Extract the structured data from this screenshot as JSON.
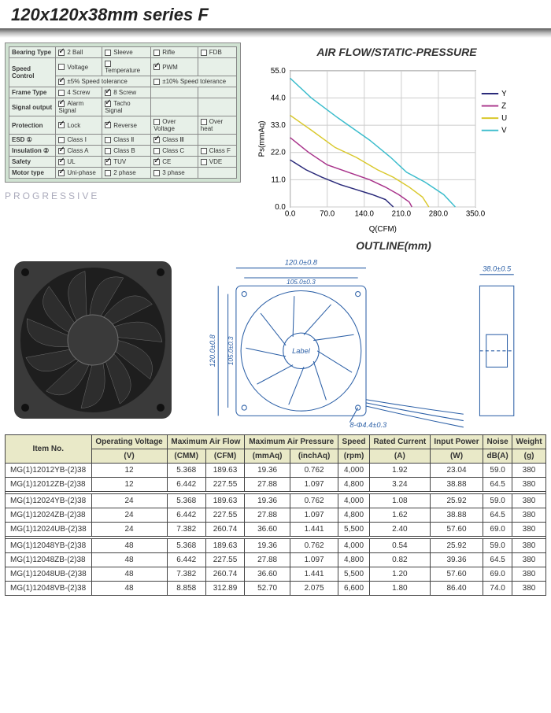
{
  "page": {
    "title": "120x120x38mm series F"
  },
  "spec_table": {
    "rows": [
      {
        "label": "Bearing Type",
        "cells": [
          {
            "text": "2 Ball",
            "checked": true
          },
          {
            "text": "Sleeve",
            "checked": false
          },
          {
            "text": "Rifle",
            "checked": false
          },
          {
            "text": "FDB",
            "checked": false
          }
        ]
      },
      {
        "label": "Speed Control",
        "subrows": [
          [
            {
              "text": "Voltage",
              "checked": false
            },
            {
              "text": "Temperature",
              "checked": false
            },
            {
              "text": "PWM",
              "checked": true
            },
            {
              "text": "",
              "checked": null
            }
          ],
          [
            {
              "text": "±5% Speed tolerance",
              "checked": true,
              "span": 2
            },
            {
              "text": "±10% Speed tolerance",
              "checked": false,
              "span": 2
            }
          ]
        ]
      },
      {
        "label": "Frame Type",
        "cells": [
          {
            "text": "4 Screw",
            "checked": false
          },
          {
            "text": "8 Screw",
            "checked": true
          },
          {
            "text": "",
            "checked": null
          },
          {
            "text": "",
            "checked": null
          }
        ]
      },
      {
        "label": "Signal output",
        "cells": [
          {
            "text": "Alarm Signal",
            "checked": true
          },
          {
            "text": "Tacho Signal",
            "checked": true
          },
          {
            "text": "",
            "checked": null
          },
          {
            "text": "",
            "checked": null
          }
        ]
      },
      {
        "label": "Protection",
        "cells": [
          {
            "text": "Lock",
            "checked": true
          },
          {
            "text": "Reverse",
            "checked": true
          },
          {
            "text": "Over Voltage",
            "checked": false
          },
          {
            "text": "Over heat",
            "checked": false
          }
        ]
      },
      {
        "label": "ESD ①",
        "cells": [
          {
            "text": "Class Ⅰ",
            "checked": false
          },
          {
            "text": "Class Ⅱ",
            "checked": false
          },
          {
            "text": "Class Ⅲ",
            "checked": true
          },
          {
            "text": "",
            "checked": null
          }
        ]
      },
      {
        "label": "Insulation ②",
        "cells": [
          {
            "text": "Class A",
            "checked": true
          },
          {
            "text": "Class B",
            "checked": false
          },
          {
            "text": "Class C",
            "checked": false
          },
          {
            "text": "Class F",
            "checked": false
          }
        ]
      },
      {
        "label": "Safety",
        "cells": [
          {
            "text": "UL",
            "checked": true
          },
          {
            "text": "TUV",
            "checked": true
          },
          {
            "text": "CE",
            "checked": true
          },
          {
            "text": "VDE",
            "checked": false
          }
        ]
      },
      {
        "label": "Motor type",
        "cells": [
          {
            "text": "Uni-phase",
            "checked": true
          },
          {
            "text": "2 phase",
            "checked": false
          },
          {
            "text": "3 phase",
            "checked": false
          },
          {
            "text": "",
            "checked": null
          }
        ]
      }
    ],
    "bg_color": "#d0e2d2",
    "cell_bg": "#e7f0e8",
    "watermark": "PROGRESSIVE"
  },
  "chart": {
    "title": "AIR FLOW/STATIC-PRESSURE",
    "type": "line",
    "xlabel": "Q(CFM)",
    "ylabel": "Ps(mmAq)",
    "xlim": [
      0,
      350
    ],
    "ylim": [
      0,
      55
    ],
    "xticks": [
      0.0,
      70.0,
      140.0,
      210.0,
      280.0,
      350.0
    ],
    "yticks": [
      0.0,
      11.0,
      22.0,
      33.0,
      44.0,
      55.0
    ],
    "grid_color": "#cccccc",
    "axis_color": "#000000",
    "bg_color": "#ffffff",
    "legend": [
      {
        "name": "Y",
        "color": "#2a2a7a"
      },
      {
        "name": "Z",
        "color": "#a8328a"
      },
      {
        "name": "U",
        "color": "#d9c82b"
      },
      {
        "name": "V",
        "color": "#3abccc"
      }
    ],
    "series": {
      "V": [
        [
          0,
          52
        ],
        [
          40,
          44
        ],
        [
          90,
          36
        ],
        [
          150,
          27
        ],
        [
          190,
          20
        ],
        [
          220,
          14
        ],
        [
          255,
          10
        ],
        [
          290,
          5
        ],
        [
          312,
          0
        ]
      ],
      "U": [
        [
          0,
          37
        ],
        [
          40,
          31
        ],
        [
          85,
          24
        ],
        [
          125,
          20
        ],
        [
          165,
          15
        ],
        [
          195,
          12
        ],
        [
          225,
          8
        ],
        [
          250,
          4
        ],
        [
          262,
          0
        ]
      ],
      "Z": [
        [
          0,
          28
        ],
        [
          35,
          22
        ],
        [
          70,
          17
        ],
        [
          110,
          14
        ],
        [
          150,
          11
        ],
        [
          180,
          8
        ],
        [
          205,
          5
        ],
        [
          225,
          2
        ],
        [
          230,
          0
        ]
      ],
      "Y": [
        [
          0,
          19
        ],
        [
          30,
          15
        ],
        [
          60,
          12
        ],
        [
          95,
          9
        ],
        [
          125,
          7
        ],
        [
          155,
          5
        ],
        [
          180,
          3
        ],
        [
          195,
          0
        ]
      ]
    },
    "line_width": 1.5,
    "label_fontsize": 10
  },
  "outline": {
    "title": "OUTLINE(mm)",
    "dims": {
      "width_label": "120.0±0.8",
      "width_inner": "105.0±0.3",
      "height_label": "120.0±0.8",
      "height_inner": "105.0±0.3",
      "depth_label": "38.0±0.5",
      "holes": "8-Φ4.4±0.3",
      "center_text": "Label"
    },
    "stroke": "#2b5fa6",
    "text_color": "#2b5fa6"
  },
  "fan_photo": {
    "body_color": "#3a3a3a",
    "blade_color": "#2d2d2d",
    "highlight": "#707070"
  },
  "data_table": {
    "header_bg": "#e9e9c8",
    "headers_top": [
      "Item No.",
      "Operating Voltage",
      "Maximum Air Flow",
      "Maximum Air Pressure",
      "Speed",
      "Rated Current",
      "Input Power",
      "Noise",
      "Weight"
    ],
    "headers_units": [
      "",
      "(V)",
      "(CMM)",
      "(CFM)",
      "(mmAq)",
      "(inchAq)",
      "(rpm)",
      "(A)",
      "(W)",
      "dB(A)",
      "(g)"
    ],
    "col_spans_top": [
      1,
      1,
      2,
      2,
      1,
      1,
      1,
      1,
      1
    ],
    "groups": [
      [
        [
          "MG(1)12012YB-(2)38",
          "12",
          "5.368",
          "189.63",
          "19.36",
          "0.762",
          "4,000",
          "1.92",
          "23.04",
          "59.0",
          "380"
        ],
        [
          "MG(1)12012ZB-(2)38",
          "12",
          "6.442",
          "227.55",
          "27.88",
          "1.097",
          "4,800",
          "3.24",
          "38.88",
          "64.5",
          "380"
        ]
      ],
      [
        [
          "MG(1)12024YB-(2)38",
          "24",
          "5.368",
          "189.63",
          "19.36",
          "0.762",
          "4,000",
          "1.08",
          "25.92",
          "59.0",
          "380"
        ],
        [
          "MG(1)12024ZB-(2)38",
          "24",
          "6.442",
          "227.55",
          "27.88",
          "1.097",
          "4,800",
          "1.62",
          "38.88",
          "64.5",
          "380"
        ],
        [
          "MG(1)12024UB-(2)38",
          "24",
          "7.382",
          "260.74",
          "36.60",
          "1.441",
          "5,500",
          "2.40",
          "57.60",
          "69.0",
          "380"
        ]
      ],
      [
        [
          "MG(1)12048YB-(2)38",
          "48",
          "5.368",
          "189.63",
          "19.36",
          "0.762",
          "4,000",
          "0.54",
          "25.92",
          "59.0",
          "380"
        ],
        [
          "MG(1)12048ZB-(2)38",
          "48",
          "6.442",
          "227.55",
          "27.88",
          "1.097",
          "4,800",
          "0.82",
          "39.36",
          "64.5",
          "380"
        ],
        [
          "MG(1)12048UB-(2)38",
          "48",
          "7.382",
          "260.74",
          "36.60",
          "1.441",
          "5,500",
          "1.20",
          "57.60",
          "69.0",
          "380"
        ],
        [
          "MG(1)12048VB-(2)38",
          "48",
          "8.858",
          "312.89",
          "52.70",
          "2.075",
          "6,600",
          "1.80",
          "86.40",
          "74.0",
          "380"
        ]
      ]
    ]
  }
}
